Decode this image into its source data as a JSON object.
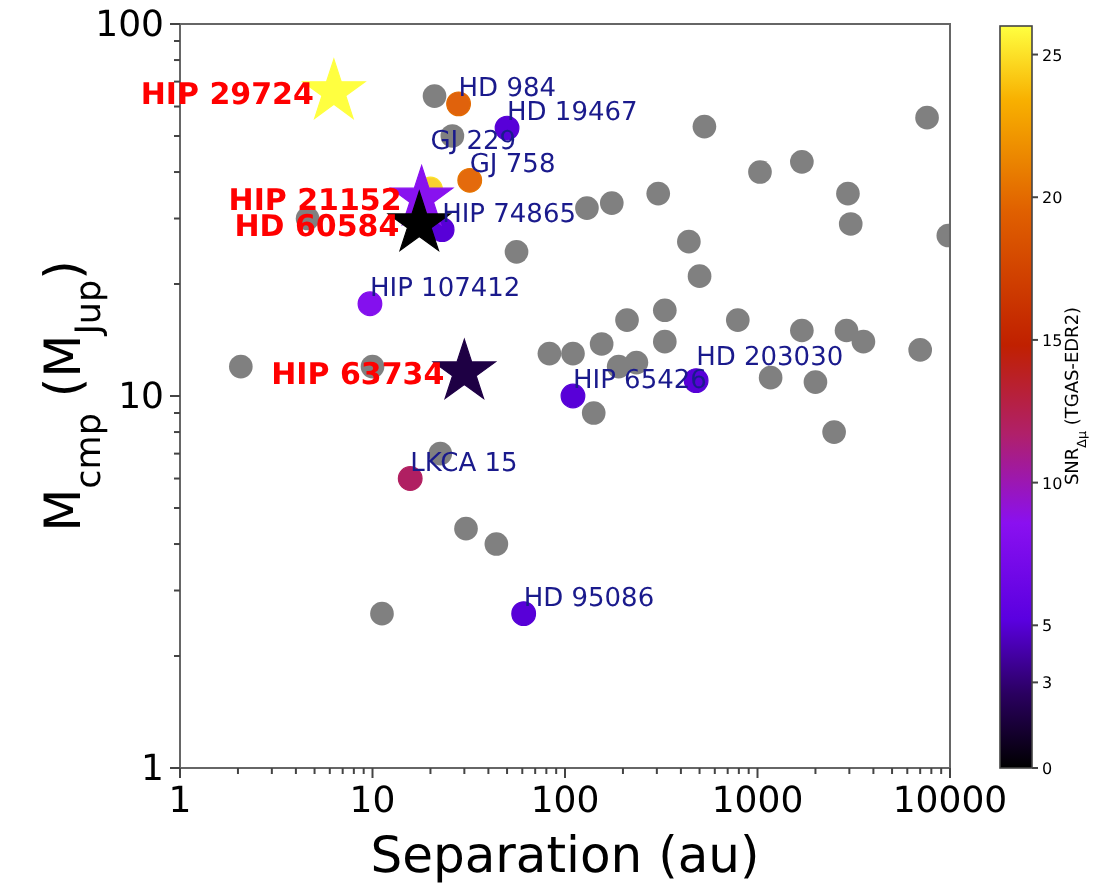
{
  "chart_data": {
    "type": "scatter",
    "xlabel": "Separation (au)",
    "ylabel": "M$_{cmp}$ (M$_{Jup}$)",
    "clabel": "SNR$_{Δμ}$ (TGAS-EDR2)",
    "log": "xy",
    "grid": false,
    "xlim": [
      1,
      10000
    ],
    "ylim": [
      1,
      100
    ],
    "clim": [
      0,
      26
    ],
    "cticks": [
      0,
      3,
      5,
      10,
      15,
      20,
      25
    ],
    "xticks": [
      1,
      {
        "value": 2,
        "label": null
      },
      {
        "value": 3,
        "label": null
      },
      {
        "value": 4,
        "label": null
      },
      {
        "value": 5,
        "label": null
      },
      {
        "value": 6,
        "label": null
      },
      {
        "value": 7,
        "label": null
      },
      {
        "value": 8,
        "label": null
      },
      {
        "value": 9,
        "label": null
      },
      10,
      {
        "value": 20,
        "label": null
      },
      {
        "value": 30,
        "label": null
      },
      {
        "value": 40,
        "label": null
      },
      {
        "value": 50,
        "label": null
      },
      {
        "value": 60,
        "label": null
      },
      {
        "value": 70,
        "label": null
      },
      {
        "value": 80,
        "label": null
      },
      {
        "value": 90,
        "label": null
      },
      100,
      {
        "value": 200,
        "label": null
      },
      {
        "value": 300,
        "label": null
      },
      {
        "value": 400,
        "label": null
      },
      {
        "value": 500,
        "label": null
      },
      {
        "value": 600,
        "label": null
      },
      {
        "value": 700,
        "label": null
      },
      {
        "value": 800,
        "label": null
      },
      {
        "value": 900,
        "label": null
      },
      1000,
      {
        "value": 2000,
        "label": null
      },
      {
        "value": 3000,
        "label": null
      },
      {
        "value": 4000,
        "label": null
      },
      {
        "value": 5000,
        "label": null
      },
      {
        "value": 6000,
        "label": null
      },
      {
        "value": 7000,
        "label": null
      },
      {
        "value": 8000,
        "label": null
      },
      {
        "value": 9000,
        "label": null
      },
      10000
    ],
    "yticks": [
      1,
      {
        "value": 2,
        "label": null
      },
      {
        "value": 3,
        "label": null
      },
      {
        "value": 4,
        "label": null
      },
      {
        "value": 5,
        "label": null
      },
      {
        "value": 6,
        "label": null
      },
      {
        "value": 7,
        "label": null
      },
      {
        "value": 8,
        "label": null
      },
      {
        "value": 9,
        "label": null
      },
      10,
      {
        "value": 20,
        "label": null
      },
      {
        "value": 30,
        "label": null
      },
      {
        "value": 40,
        "label": null
      },
      {
        "value": 50,
        "label": null
      },
      {
        "value": 60,
        "label": null
      },
      {
        "value": 70,
        "label": null
      },
      {
        "value": 80,
        "label": null
      },
      {
        "value": 90,
        "label": null
      },
      100
    ],
    "series": [
      {
        "marker": "circle",
        "color": "#808080",
        "x": [
          21,
          26,
          4.6,
          56,
          130,
          175,
          2.07,
          10,
          110,
          530,
          7600,
          1030,
          1700,
          2950,
          3050,
          305,
          440,
          500,
          9800,
          330,
          210,
          790,
          1700,
          2900,
          3550,
          7000,
          155,
          330,
          83,
          190,
          235,
          1170,
          2000,
          141,
          2500,
          44,
          30.6,
          11.2,
          22.5
        ],
        "values": [
          64,
          50,
          30,
          24.4,
          32,
          33,
          12,
          12,
          13,
          53,
          56,
          40,
          42.6,
          35,
          29,
          35,
          26,
          21,
          27,
          17,
          16,
          16,
          15,
          15,
          14,
          13.3,
          13.8,
          14,
          13,
          12,
          12.3,
          11.2,
          10.9,
          9,
          8,
          4,
          4.4,
          2.6,
          7
        ]
      },
      {
        "marker": "circle",
        "x": [
          28,
          50,
          32,
          20,
          23,
          9.7,
          15.7,
          110,
          480,
          61
        ],
        "values": [
          61,
          52.5,
          38,
          36,
          28,
          17.7,
          6,
          10,
          11,
          2.6
        ],
        "cvalues": [
          20,
          5,
          20.5,
          25,
          5,
          8,
          12,
          5,
          5,
          5
        ],
        "colors": [
          "#e0620c",
          "#5800d8",
          "#e46a0c",
          "#f8d030",
          "#5800d8",
          "#8410ee",
          "#b01f62",
          "#5800d8",
          "#5800d8",
          "#5800d8"
        ]
      },
      {
        "marker": "star",
        "x": [
          6.3,
          18,
          17.5,
          30
        ],
        "values": [
          65.7,
          34,
          29,
          11.6
        ],
        "cvalues": [
          26,
          8.5,
          0,
          1.9
        ],
        "colors": [
          "#ffff40",
          "#8812ef",
          "#000000",
          "#1e0044"
        ]
      }
    ],
    "annotations": [
      {
        "text": "HIP 29724",
        "x": 6.3,
        "y": 65.7
      },
      {
        "text": "HIP 21152",
        "x": 18,
        "y": 34
      },
      {
        "text": "HD 60584",
        "x": 17.5,
        "y": 29
      },
      {
        "text": "HIP 63734",
        "x": 30,
        "y": 11.6
      },
      {
        "text": "HD 984",
        "x": 28,
        "y": 61
      },
      {
        "text": "HD 19467",
        "x": 50,
        "y": 52.5
      },
      {
        "text": "GJ 758",
        "x": 32,
        "y": 38
      },
      {
        "text": "GJ 229",
        "x": 20,
        "y": 36
      },
      {
        "text": "HIP 74865",
        "x": 23,
        "y": 28
      },
      {
        "text": "HIP 107412",
        "x": 9.7,
        "y": 17.7
      },
      {
        "text": "LKCA 15",
        "x": 15.7,
        "y": 6
      },
      {
        "text": "HIP 65426",
        "x": 110,
        "y": 10
      },
      {
        "text": "HD 203030",
        "x": 480,
        "y": 11
      },
      {
        "text": "HD 95086",
        "x": 61,
        "y": 2.6
      }
    ]
  }
}
